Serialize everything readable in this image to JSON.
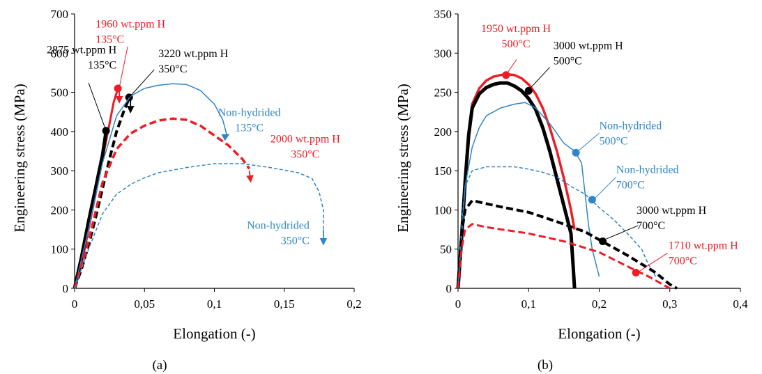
{
  "chart_data": [
    {
      "type": "line",
      "panel_label": "(a)",
      "xlabel": "Elongation (-)",
      "ylabel": "Engineering stress (MPa)",
      "xlim": [
        0,
        0.2
      ],
      "ylim": [
        0,
        700
      ],
      "xticks": [
        "0",
        "0,05",
        "0,1",
        "0,15",
        "0,2"
      ],
      "yticks": [
        "0",
        "100",
        "200",
        "300",
        "400",
        "500",
        "600",
        "700"
      ],
      "colors": {
        "red": "#ee1c25",
        "blue": "#2e86c8",
        "black": "#000000"
      },
      "series": [
        {
          "color": "red",
          "style": "solid",
          "width": 3,
          "points": [
            [
              0,
              0
            ],
            [
              0.005,
              60
            ],
            [
              0.01,
              150
            ],
            [
              0.015,
              240
            ],
            [
              0.02,
              330
            ],
            [
              0.025,
              420
            ],
            [
              0.028,
              475
            ],
            [
              0.031,
              510
            ]
          ],
          "marker": [
            0.031,
            510
          ],
          "arrow": [
            0.032,
            510,
            0.032,
            475
          ]
        },
        {
          "color": "black",
          "style": "solid",
          "width": 5,
          "points": [
            [
              0,
              0
            ],
            [
              0.005,
              80
            ],
            [
              0.01,
              170
            ],
            [
              0.015,
              255
            ],
            [
              0.02,
              340
            ],
            [
              0.0225,
              400
            ]
          ],
          "marker": [
            0.0225,
            402
          ]
        },
        {
          "color": "black",
          "style": "dash",
          "width": 4,
          "points": [
            [
              0,
              0
            ],
            [
              0.005,
              50
            ],
            [
              0.01,
              110
            ],
            [
              0.015,
              180
            ],
            [
              0.02,
              255
            ],
            [
              0.025,
              330
            ],
            [
              0.03,
              400
            ],
            [
              0.035,
              450
            ],
            [
              0.039,
              485
            ]
          ],
          "marker": [
            0.039,
            487
          ],
          "arrow": [
            0.04,
            487,
            0.04,
            450
          ]
        },
        {
          "color": "blue",
          "style": "solid",
          "width": 1.5,
          "points": [
            [
              0,
              0
            ],
            [
              0.01,
              150
            ],
            [
              0.02,
              320
            ],
            [
              0.03,
              440
            ],
            [
              0.04,
              490
            ],
            [
              0.05,
              510
            ],
            [
              0.06,
              518
            ],
            [
              0.07,
              522
            ],
            [
              0.08,
              520
            ],
            [
              0.09,
              505
            ],
            [
              0.1,
              470
            ],
            [
              0.106,
              430
            ],
            [
              0.109,
              390
            ]
          ],
          "arrow": [
            0.109,
            390,
            0.11,
            392
          ]
        },
        {
          "color": "red",
          "style": "dash",
          "width": 3.5,
          "points": [
            [
              0,
              0
            ],
            [
              0.01,
              120
            ],
            [
              0.02,
              270
            ],
            [
              0.03,
              355
            ],
            [
              0.04,
              395
            ],
            [
              0.05,
              415
            ],
            [
              0.06,
              428
            ],
            [
              0.07,
              433
            ],
            [
              0.08,
              430
            ],
            [
              0.09,
              415
            ],
            [
              0.1,
              390
            ],
            [
              0.11,
              365
            ],
            [
              0.12,
              330
            ],
            [
              0.125,
              305
            ]
          ],
          "arrow": [
            0.125,
            300,
            0.126,
            273
          ]
        },
        {
          "color": "blue",
          "style": "dash",
          "width": 1.5,
          "points": [
            [
              0,
              0
            ],
            [
              0.01,
              100
            ],
            [
              0.02,
              190
            ],
            [
              0.03,
              240
            ],
            [
              0.04,
              265
            ],
            [
              0.05,
              282
            ],
            [
              0.06,
              295
            ],
            [
              0.08,
              308
            ],
            [
              0.1,
              318
            ],
            [
              0.12,
              318
            ],
            [
              0.14,
              308
            ],
            [
              0.16,
              295
            ],
            [
              0.17,
              280
            ],
            [
              0.175,
              245
            ],
            [
              0.178,
              200
            ],
            [
              0.178,
              150
            ]
          ],
          "arrow": [
            0.178,
            150,
            0.178,
            113
          ]
        }
      ],
      "annotations": [
        {
          "lines": [
            "1960 wt.ppm H",
            "135°C"
          ],
          "color": "red",
          "anchor": "start",
          "at": [
            0.015,
            665
          ],
          "leader": [
            0.038,
            617,
            0.032,
            513
          ]
        },
        {
          "lines": [
            "2875 wt.ppm H",
            "135°C"
          ],
          "color": "black",
          "anchor": "end",
          "at": [
            0.03,
            600
          ],
          "leader": [
            0.01,
            524,
            0.0225,
            402
          ]
        },
        {
          "lines": [
            "3220 wt.ppm H",
            "350°C"
          ],
          "color": "black",
          "anchor": "start",
          "at": [
            0.06,
            590
          ],
          "leader": [
            0.057,
            558,
            0.039,
            487
          ]
        },
        {
          "lines": [
            "Non-hydrided",
            "135°C"
          ],
          "color": "blue",
          "anchor": "middle",
          "at": [
            0.125,
            440
          ]
        },
        {
          "lines": [
            "2000 wt.ppm H",
            "350°C"
          ],
          "color": "red",
          "anchor": "middle",
          "at": [
            0.165,
            372
          ]
        },
        {
          "lines": [
            "Non-hydrided",
            "350°C"
          ],
          "color": "blue",
          "anchor": "end",
          "at": [
            0.168,
            152
          ]
        }
      ]
    },
    {
      "type": "line",
      "panel_label": "(b)",
      "xlabel": "Elongation (-)",
      "ylabel": "Engineering stress (MPa)",
      "xlim": [
        0,
        0.4
      ],
      "ylim": [
        0,
        350
      ],
      "xticks": [
        "0",
        "0,1",
        "0,2",
        "0,3",
        "0,4"
      ],
      "yticks": [
        "0",
        "50",
        "100",
        "150",
        "200",
        "250",
        "300",
        "350"
      ],
      "colors": {
        "red": "#ee1c25",
        "blue": "#2e86c8",
        "black": "#000000"
      },
      "series": [
        {
          "color": "red",
          "style": "solid",
          "width": 3.5,
          "points": [
            [
              0,
              0
            ],
            [
              0.005,
              70
            ],
            [
              0.01,
              140
            ],
            [
              0.015,
              200
            ],
            [
              0.02,
              235
            ],
            [
              0.03,
              255
            ],
            [
              0.04,
              265
            ],
            [
              0.05,
              270
            ],
            [
              0.06,
              272
            ],
            [
              0.07,
              273
            ],
            [
              0.08,
              272
            ],
            [
              0.09,
              268
            ],
            [
              0.1,
              260
            ],
            [
              0.11,
              248
            ],
            [
              0.12,
              230
            ],
            [
              0.13,
              205
            ],
            [
              0.14,
              175
            ],
            [
              0.15,
              140
            ],
            [
              0.16,
              100
            ],
            [
              0.165,
              75
            ]
          ],
          "marker": [
            0.068,
            272
          ]
        },
        {
          "color": "black",
          "style": "solid",
          "width": 5,
          "points": [
            [
              0,
              0
            ],
            [
              0.005,
              65
            ],
            [
              0.01,
              135
            ],
            [
              0.015,
              195
            ],
            [
              0.02,
              230
            ],
            [
              0.03,
              248
            ],
            [
              0.04,
              256
            ],
            [
              0.05,
              260
            ],
            [
              0.06,
              262
            ],
            [
              0.07,
              262
            ],
            [
              0.08,
              258
            ],
            [
              0.09,
              252
            ],
            [
              0.1,
              242
            ],
            [
              0.11,
              228
            ],
            [
              0.12,
              205
            ],
            [
              0.13,
              175
            ],
            [
              0.14,
              140
            ],
            [
              0.15,
              105
            ],
            [
              0.16,
              70
            ],
            [
              0.163,
              30
            ],
            [
              0.165,
              0
            ]
          ],
          "marker": [
            0.1,
            252
          ]
        },
        {
          "color": "blue",
          "style": "solid",
          "width": 1.5,
          "points": [
            [
              0,
              0
            ],
            [
              0.01,
              130
            ],
            [
              0.02,
              180
            ],
            [
              0.03,
              205
            ],
            [
              0.04,
              220
            ],
            [
              0.06,
              230
            ],
            [
              0.08,
              235
            ],
            [
              0.095,
              237
            ],
            [
              0.11,
              230
            ],
            [
              0.13,
              210
            ],
            [
              0.15,
              185
            ],
            [
              0.165,
              175
            ],
            [
              0.175,
              160
            ],
            [
              0.18,
              120
            ],
            [
              0.185,
              80
            ],
            [
              0.19,
              50
            ],
            [
              0.2,
              15
            ]
          ],
          "marker": [
            0.167,
            173
          ]
        },
        {
          "color": "blue",
          "style": "dash",
          "width": 1.5,
          "points": [
            [
              0,
              0
            ],
            [
              0.005,
              80
            ],
            [
              0.01,
              130
            ],
            [
              0.02,
              150
            ],
            [
              0.04,
              155
            ],
            [
              0.08,
              155
            ],
            [
              0.1,
              152
            ],
            [
              0.12,
              148
            ],
            [
              0.14,
              142
            ],
            [
              0.16,
              130
            ],
            [
              0.18,
              120
            ],
            [
              0.2,
              103
            ],
            [
              0.22,
              88
            ],
            [
              0.24,
              70
            ],
            [
              0.26,
              50
            ],
            [
              0.27,
              30
            ],
            [
              0.28,
              15
            ]
          ],
          "marker": [
            0.19,
            113
          ]
        },
        {
          "color": "black",
          "style": "dash",
          "width": 4,
          "points": [
            [
              0,
              0
            ],
            [
              0.005,
              70
            ],
            [
              0.01,
              100
            ],
            [
              0.02,
              112
            ],
            [
              0.04,
              108
            ],
            [
              0.06,
              104
            ],
            [
              0.1,
              97
            ],
            [
              0.14,
              85
            ],
            [
              0.18,
              72
            ],
            [
              0.2,
              62
            ],
            [
              0.24,
              42
            ],
            [
              0.28,
              20
            ],
            [
              0.3,
              5
            ],
            [
              0.31,
              0
            ]
          ],
          "marker": [
            0.205,
            60
          ]
        },
        {
          "color": "red",
          "style": "dash",
          "width": 3,
          "points": [
            [
              0,
              0
            ],
            [
              0.005,
              50
            ],
            [
              0.01,
              75
            ],
            [
              0.02,
              82
            ],
            [
              0.04,
              78
            ],
            [
              0.1,
              70
            ],
            [
              0.15,
              60
            ],
            [
              0.2,
              46
            ],
            [
              0.24,
              28
            ],
            [
              0.27,
              15
            ],
            [
              0.29,
              5
            ],
            [
              0.3,
              0
            ]
          ],
          "marker": [
            0.252,
            20
          ]
        }
      ],
      "annotations": [
        {
          "lines": [
            "1950 wt.ppm H",
            "500°C"
          ],
          "color": "red",
          "anchor": "middle",
          "at": [
            0.082,
            327
          ],
          "leader": [
            0.083,
            292,
            0.07,
            275
          ]
        },
        {
          "lines": [
            "3000 wt.ppm H",
            "500°C"
          ],
          "color": "black",
          "anchor": "start",
          "at": [
            0.135,
            305
          ],
          "leader": [
            0.13,
            282,
            0.102,
            255
          ]
        },
        {
          "lines": [
            "Non-hydrided",
            "500°C"
          ],
          "color": "blue",
          "anchor": "start",
          "at": [
            0.2,
            203
          ],
          "leader": [
            0.2,
            198,
            0.17,
            175
          ]
        },
        {
          "lines": [
            "Non-hydrided",
            "700°C"
          ],
          "color": "blue",
          "anchor": "start",
          "at": [
            0.224,
            147
          ],
          "leader": [
            0.224,
            142,
            0.194,
            115
          ]
        },
        {
          "lines": [
            "3000 wt.ppm H",
            "700°C"
          ],
          "color": "black",
          "anchor": "start",
          "at": [
            0.253,
            95
          ],
          "leader": [
            0.255,
            80,
            0.21,
            63
          ]
        },
        {
          "lines": [
            "1710 wt.ppm H",
            "700°C"
          ],
          "color": "red",
          "anchor": "start",
          "at": [
            0.298,
            50
          ],
          "leader": [
            0.297,
            45,
            0.257,
            22
          ]
        }
      ]
    }
  ]
}
